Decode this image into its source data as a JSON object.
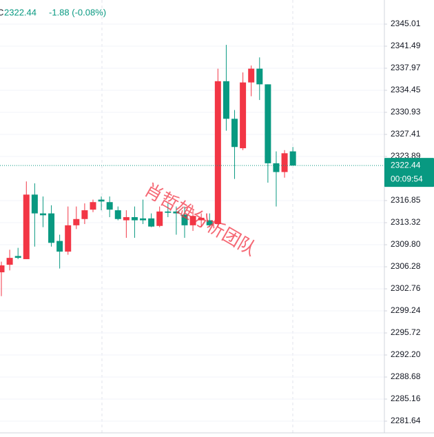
{
  "chart_data": {
    "type": "candlestick",
    "header": {
      "prefix": "C",
      "change": "-1.88 (-0.08%)"
    },
    "countdown": "00:09:54",
    "watermark": "肖哲雄分析团队",
    "up_color": "#f23645",
    "down_color": "#089981",
    "ylim": [
      2279.77,
      2348.86
    ],
    "yticks": [
      {
        "value": 2345.01,
        "label": "2345.01"
      },
      {
        "value": 2341.49,
        "label": "2341.49"
      },
      {
        "value": 2337.97,
        "label": "2337.97"
      },
      {
        "value": 2334.45,
        "label": "2334.45"
      },
      {
        "value": 2330.93,
        "label": "2330.93"
      },
      {
        "value": 2327.41,
        "label": "2327.41"
      },
      {
        "value": 2323.89,
        "label": "2323.89"
      },
      {
        "value": 2316.85,
        "label": "2316.85"
      },
      {
        "value": 2313.32,
        "label": "2313.32"
      },
      {
        "value": 2309.8,
        "label": "2309.80"
      },
      {
        "value": 2306.28,
        "label": "2306.28"
      },
      {
        "value": 2302.76,
        "label": "2302.76"
      },
      {
        "value": 2299.24,
        "label": "2299.24"
      },
      {
        "value": 2295.72,
        "label": "2295.72"
      },
      {
        "value": 2292.2,
        "label": "2292.20"
      },
      {
        "value": 2288.68,
        "label": "2288.68"
      },
      {
        "value": 2285.16,
        "label": "2285.16"
      },
      {
        "value": 2281.64,
        "label": "2281.64"
      }
    ],
    "grid": true,
    "open": [
      2305.4,
      2306.6,
      2308.0,
      2307.5,
      2317.8,
      2314.8,
      2314.8,
      2310.4,
      2308.7,
      2312.9,
      2313.9,
      2315.4,
      2317.0,
      2316.6,
      2315.3,
      2313.7,
      2314.2,
      2314.0,
      2314.0,
      2312.8,
      2315.1,
      2315.1,
      2314.6,
      2312.9,
      2313.7,
      2313.7,
      2313.1,
      2335.9,
      2329.9,
      2325.2,
      2335.7,
      2337.9,
      2335.4,
      2322.8,
      2321.4,
      2324.7
    ],
    "high": [
      2307.1,
      2309.0,
      2309.3,
      2319.9,
      2319.6,
      2317.5,
      2316.1,
      2311.4,
      2315.9,
      2315.9,
      2316.4,
      2317.0,
      2317.5,
      2317.5,
      2315.9,
      2315.3,
      2315.9,
      2317.0,
      2314.8,
      2315.9,
      2316.4,
      2315.9,
      2315.9,
      2315.3,
      2314.8,
      2314.8,
      2337.9,
      2341.7,
      2331.3,
      2337.3,
      2338.4,
      2339.7,
      2335.4,
      2324.7,
      2324.9,
      2325.4
    ],
    "low": [
      2301.6,
      2305.7,
      2307.5,
      2307.5,
      2309.5,
      2312.6,
      2309.5,
      2306.0,
      2308.2,
      2312.3,
      2313.1,
      2315.0,
      2315.3,
      2314.2,
      2313.7,
      2310.9,
      2310.9,
      2313.1,
      2312.6,
      2312.6,
      2314.2,
      2311.4,
      2310.9,
      2312.0,
      2312.6,
      2312.6,
      2312.6,
      2328.0,
      2320.3,
      2324.9,
      2333.5,
      2332.9,
      2319.7,
      2315.9,
      2320.5,
      2322.44
    ],
    "close": [
      2306.5,
      2307.7,
      2307.7,
      2317.8,
      2314.8,
      2314.5,
      2310.1,
      2308.7,
      2312.9,
      2313.9,
      2315.3,
      2316.6,
      2316.7,
      2315.4,
      2313.9,
      2314.2,
      2313.7,
      2313.7,
      2312.7,
      2315.1,
      2314.9,
      2314.8,
      2312.9,
      2314.4,
      2314.1,
      2312.9,
      2335.9,
      2329.9,
      2325.4,
      2335.7,
      2337.9,
      2335.4,
      2322.8,
      2321.4,
      2324.4,
      2322.44
    ]
  }
}
